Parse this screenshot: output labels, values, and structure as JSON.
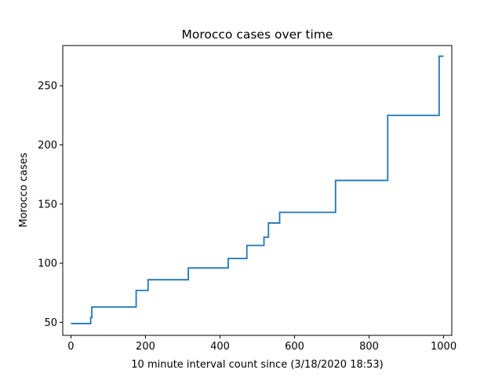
{
  "chart_data": {
    "type": "line",
    "title": "Morocco cases over time",
    "xlabel": "10 minute interval count since (3/18/2020 18:53)",
    "ylabel": "Morocco cases",
    "xlim": [
      -22,
      1022
    ],
    "ylim": [
      39,
      284
    ],
    "xticks": [
      0,
      200,
      400,
      600,
      800,
      1000
    ],
    "yticks": [
      50,
      100,
      150,
      200,
      250
    ],
    "grid": false,
    "line_color": "#1f77b4",
    "drawstyle": "steps-post",
    "series": [
      {
        "x": [
          0,
          48,
          53,
          56,
          175,
          207,
          315,
          422,
          472,
          518,
          530,
          560,
          710,
          850,
          988,
          1000
        ],
        "y": [
          49,
          49,
          54,
          63,
          77,
          86,
          96,
          104,
          115,
          122,
          134,
          143,
          170,
          225,
          275,
          275
        ]
      }
    ]
  }
}
